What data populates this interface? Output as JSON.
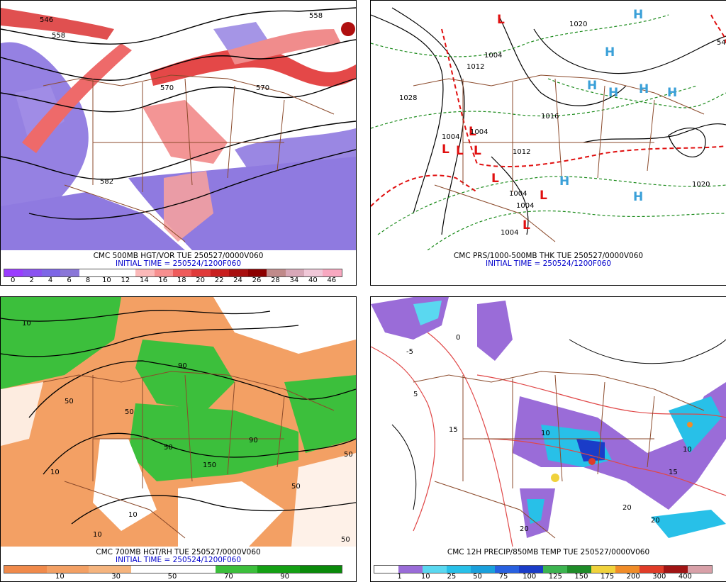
{
  "panels": [
    {
      "caption_line1": "CMC 500MB HGT/VOR TUE 250527/0000V060",
      "caption_line2": "INITIAL TIME = 250524/1200F060",
      "colorbar": {
        "colors": [
          "#9a3cff",
          "#8a52f0",
          "#7d66e6",
          "#8a76d8",
          "#ffffff",
          "#ffffff",
          "#ffffff",
          "#fbb9b9",
          "#f78f8f",
          "#ef5b5b",
          "#e03a3a",
          "#c81e1e",
          "#a80f0f",
          "#8c0000",
          "#c08a8a",
          "#d8a8b8",
          "#f0c8d8",
          "#f8a8c0"
        ],
        "labels": [
          "0",
          "2",
          "4",
          "6",
          "8",
          "10",
          "12",
          "14",
          "16",
          "18",
          "20",
          "22",
          "24",
          "26",
          "28",
          "34",
          "40",
          "46"
        ]
      },
      "contour_labels": [
        "546",
        "558",
        "558",
        "570",
        "570",
        "582"
      ]
    },
    {
      "caption_line1": "CMC PRS/1000-500MB THK TUE 250527/0000V060",
      "caption_line2": "INITIAL TIME = 250524/1200F060",
      "contour_labels": [
        "1020",
        "1004",
        "1012",
        "1028",
        "1016",
        "1012",
        "1004",
        "1004",
        "1004",
        "1004",
        "1020",
        "1004",
        "54"
      ],
      "high_symbol": "H",
      "low_symbol": "L"
    },
    {
      "caption_line1": "CMC 700MB HGT/RH TUE 250527/0000V060",
      "caption_line2": "INITIAL TIME = 250524/1200F060",
      "colorbar": {
        "colors": [
          "#f08a4b",
          "#f3a064",
          "#f5b47e",
          "#ffffff",
          "#ffffff",
          "#3cbf3c",
          "#14a014",
          "#0a8a0a"
        ],
        "labels": [
          "10",
          "30",
          "50",
          "70",
          "90"
        ]
      },
      "contour_labels": [
        "10",
        "50",
        "90",
        "50",
        "10",
        "50",
        "90",
        "10",
        "150",
        "50",
        "10",
        "50",
        "50"
      ]
    },
    {
      "caption_line1": "CMC 12H PRECIP/850MB TEMP TUE 250527/0000V060",
      "caption_line2": "",
      "colorbar": {
        "colors": [
          "#ffffff",
          "#9a6cd8",
          "#5ad8f0",
          "#28c0e8",
          "#1aa0dc",
          "#2860e0",
          "#1a3cc8",
          "#3cb450",
          "#1e8c28",
          "#f0d23c",
          "#f08c28",
          "#e03c28",
          "#a01414",
          "#d8a0a8"
        ],
        "labels": [
          "1",
          "10",
          "25",
          "50",
          "75",
          "100",
          "125",
          "150",
          "175",
          "200",
          "300",
          "400"
        ]
      },
      "contour_labels": [
        "20",
        "15",
        "10",
        "20",
        "10",
        "5",
        "0",
        "-5",
        "20",
        "15"
      ]
    }
  ]
}
